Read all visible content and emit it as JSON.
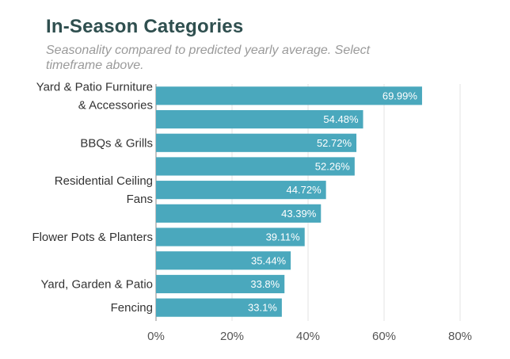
{
  "chart_data": {
    "type": "bar",
    "orientation": "horizontal",
    "title": "In-Season Categories",
    "subtitle": "Seasonality compared to predicted yearly average. Select timeframe above.",
    "categories": [
      [
        "Yard & Patio Furniture",
        "& Accessories"
      ],
      [],
      [
        "BBQs & Grills"
      ],
      [],
      [
        "Residential Ceiling",
        "Fans"
      ],
      [],
      [
        "Flower Pots & Planters"
      ],
      [],
      [
        "Yard, Garden & Patio"
      ],
      [
        "Fencing"
      ]
    ],
    "values": [
      69.99,
      54.48,
      52.72,
      52.26,
      44.72,
      43.39,
      39.11,
      35.44,
      33.8,
      33.1
    ],
    "value_labels": [
      "69.99%",
      "54.48%",
      "52.72%",
      "52.26%",
      "44.72%",
      "43.39%",
      "39.11%",
      "35.44%",
      "33.8%",
      "33.1%"
    ],
    "xlim": [
      0,
      80
    ],
    "xticks": [
      0,
      20,
      40,
      60,
      80
    ],
    "xtick_labels": [
      "0%",
      "20%",
      "40%",
      "60%",
      "80%"
    ],
    "grid": true,
    "bar_color": "#4aa8bd"
  }
}
